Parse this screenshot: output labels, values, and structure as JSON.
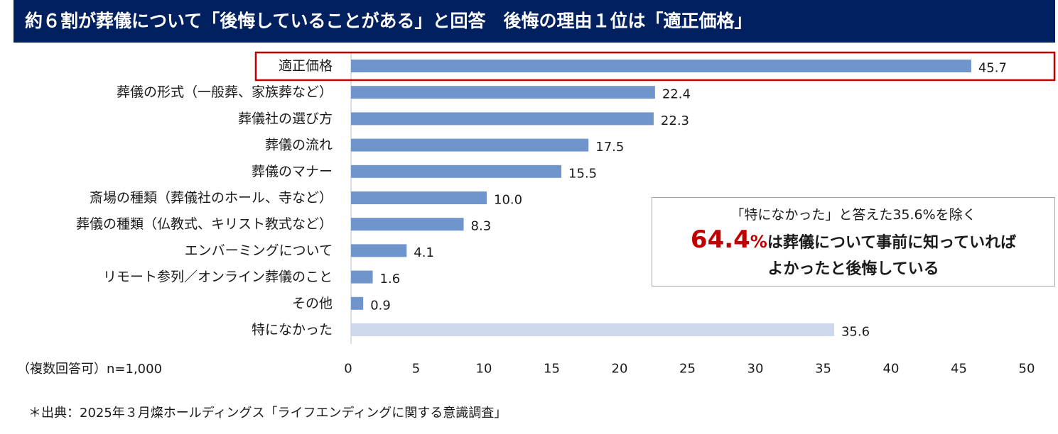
{
  "header": {
    "title": "約６割が葬儀について「後悔していることがある」と回答　後悔の理由１位は「適正価格」"
  },
  "colors": {
    "header_bg": "#002060",
    "bar": "#7094cc",
    "bar_muted": "#cdd8ec",
    "highlight": "#c00000"
  },
  "chart_data": {
    "type": "bar",
    "orientation": "horizontal",
    "categories": [
      "適正価格",
      "葬儀の形式（一般葬、家族葬など）",
      "葬儀社の選び方",
      "葬儀の流れ",
      "葬儀のマナー",
      "斎場の種類（葬儀社のホール、寺など）",
      "葬儀の種類（仏教式、キリスト教式など）",
      "エンバーミングについて",
      "リモート参列／オンライン葬儀のこと",
      "その他",
      "特になかった"
    ],
    "values": [
      45.7,
      22.4,
      22.3,
      17.5,
      15.5,
      10.0,
      8.3,
      4.1,
      1.6,
      0.9,
      35.6
    ],
    "value_labels": [
      "45.7",
      "22.4",
      "22.3",
      "17.5",
      "15.5",
      "10.0",
      "8.3",
      "4.1",
      "1.6",
      "0.9",
      "35.6"
    ],
    "xlim": [
      0,
      50
    ],
    "x_ticks": [
      0,
      5,
      10,
      15,
      20,
      25,
      30,
      35,
      40,
      45,
      50
    ],
    "highlighted_category": "適正価格",
    "muted_category": "特になかった",
    "grid": false
  },
  "callout": {
    "line1": "「特になかった」と答えた35.6%を除く",
    "big_number": "64.4",
    "big_percent": "%",
    "line2_rest": "は葬儀について事前に知っていれば",
    "line3": "よかったと後悔している"
  },
  "footnote": {
    "sample": "（複数回答可）n=1,000",
    "source": "＊出典：2025年３月燦ホールディングス「ライフエンディングに関する意識調査」"
  }
}
